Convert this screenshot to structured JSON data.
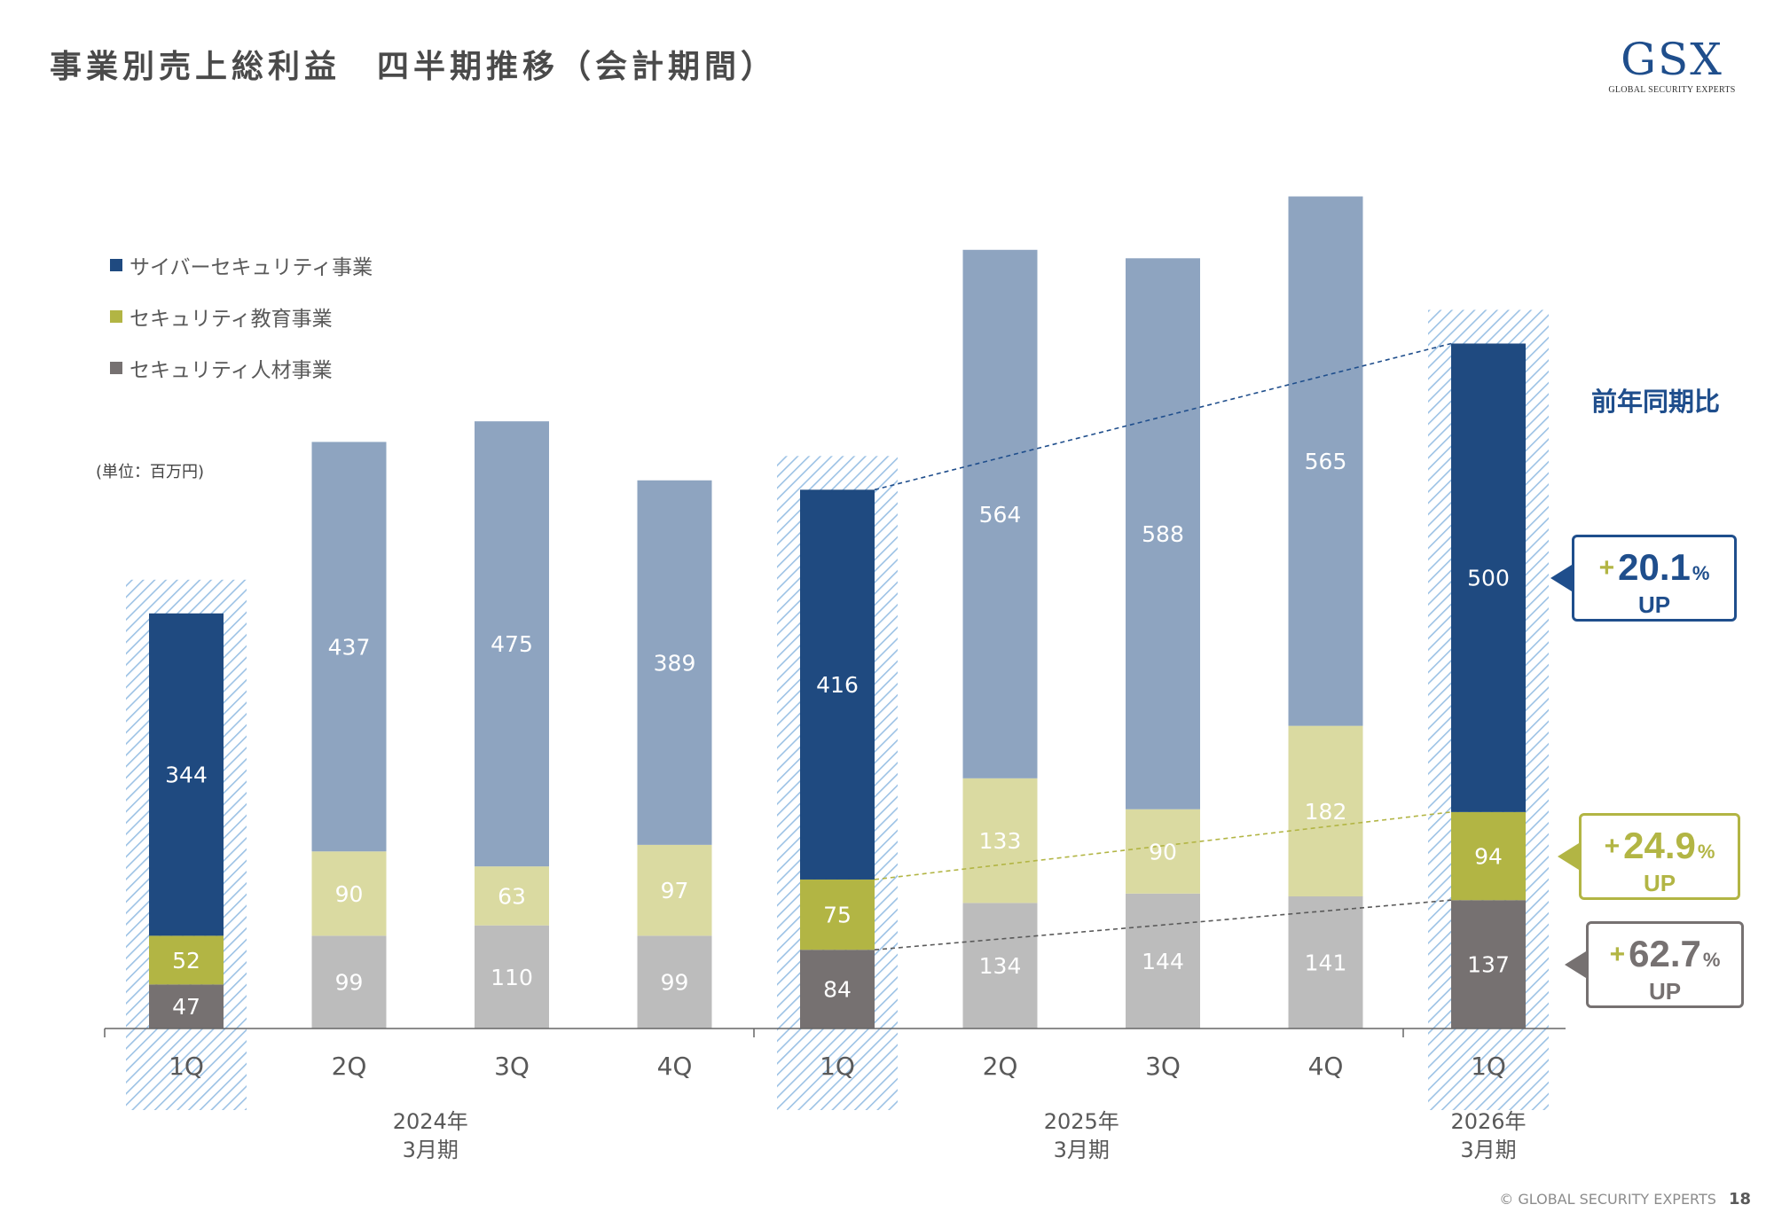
{
  "title": "事業別売上総利益　四半期推移（会計期間）",
  "logo": {
    "mark": "GSX",
    "sub": "GLOBAL SECURITY EXPERTS"
  },
  "unit": "(単位：百万円)",
  "yoy_label": "前年同期比",
  "footer": {
    "copyright": "© GLOBAL SECURITY EXPERTS",
    "page": "18"
  },
  "colors": {
    "cyber_dark": "#1f4a80",
    "cyber_light": "#8ea4c0",
    "edu_dark": "#b2b544",
    "edu_light": "#dadaa1",
    "hr_dark": "#767171",
    "hr_light": "#bcbcbc",
    "hatch": "#9cc2e5",
    "label_dark": "#ffffff",
    "label_light": "#ffffff"
  },
  "callouts": [
    {
      "sign": "+",
      "value": "20.1",
      "pct": "%",
      "up": "UP",
      "color": "#1f4e8c"
    },
    {
      "sign": "+",
      "value": "24.9",
      "pct": "%",
      "up": "UP",
      "color": "#b2b544"
    },
    {
      "sign": "+",
      "value": "62.7",
      "pct": "%",
      "up": "UP",
      "color": "#767171"
    }
  ],
  "chart_data": {
    "type": "bar",
    "stacked": true,
    "categories": [
      "1Q",
      "2Q",
      "3Q",
      "4Q",
      "1Q",
      "2Q",
      "3Q",
      "4Q",
      "1Q"
    ],
    "groups": [
      {
        "label": [
          "2024年",
          "3月期"
        ],
        "categories": [
          0,
          1,
          2,
          3
        ]
      },
      {
        "label": [
          "2025年",
          "3月期"
        ],
        "categories": [
          4,
          5,
          6,
          7
        ]
      },
      {
        "label": [
          "2026年",
          "3月期"
        ],
        "categories": [
          8
        ]
      }
    ],
    "highlighted": [
      0,
      4,
      8
    ],
    "series": [
      {
        "name": "セキュリティ人材事業",
        "values": [
          47,
          99,
          110,
          99,
          84,
          134,
          144,
          141,
          137
        ]
      },
      {
        "name": "セキュリティ教育事業",
        "values": [
          52,
          90,
          63,
          97,
          75,
          133,
          90,
          182,
          94
        ]
      },
      {
        "name": "サイバーセキュリティ事業",
        "values": [
          344,
          437,
          475,
          389,
          416,
          564,
          588,
          565,
          500
        ]
      }
    ],
    "legend_order": [
      "サイバーセキュリティ事業",
      "セキュリティ教育事業",
      "セキュリティ人材事業"
    ],
    "legend_position": "top-left",
    "ylim": [
      0,
      880
    ],
    "grid": false
  }
}
